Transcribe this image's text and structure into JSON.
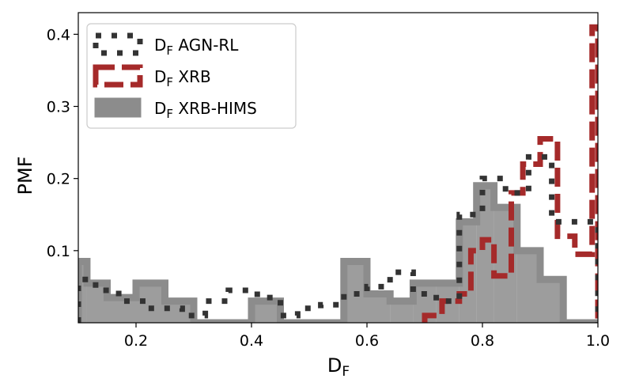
{
  "chart_data": {
    "type": "histogram",
    "xlabel": "D",
    "xlabel_sub": "F",
    "ylabel": "PMF",
    "xlim": [
      0.1,
      1.0
    ],
    "ylim": [
      0,
      0.43
    ],
    "xticks": [
      0.2,
      0.4,
      0.6,
      0.8,
      1.0
    ],
    "xtick_labels": [
      "0.2",
      "0.4",
      "0.6",
      "0.8",
      "1.0"
    ],
    "yticks": [
      0.1,
      0.2,
      0.3,
      0.4
    ],
    "ytick_labels": [
      "0.1",
      "0.2",
      "0.3",
      "0.4"
    ],
    "grid": false,
    "legend": {
      "placement": "top-left"
    },
    "series": [
      {
        "name": "D",
        "name_sub": "F",
        "name_rest": " AGN-RL",
        "style": "dotted",
        "color": "#333333",
        "edges": [
          0.1,
          0.13,
          0.17,
          0.22,
          0.25,
          0.28,
          0.32,
          0.36,
          0.41,
          0.45,
          0.48,
          0.52,
          0.56,
          0.6,
          0.64,
          0.68,
          0.72,
          0.76,
          0.8,
          0.84,
          0.88,
          0.92,
          0.96,
          1.0
        ],
        "values": [
          0.06,
          0.045,
          0.03,
          0.02,
          0.02,
          0.01,
          0.03,
          0.045,
          0.035,
          0.01,
          0.02,
          0.025,
          0.04,
          0.05,
          0.07,
          0.04,
          0.03,
          0.15,
          0.2,
          0.18,
          0.23,
          0.14,
          0.14
        ]
      },
      {
        "name": "D",
        "name_sub": "F",
        "name_rest": " XRB",
        "style": "dashed",
        "color": "#a52a2a",
        "edges": [
          0.7,
          0.73,
          0.76,
          0.78,
          0.8,
          0.82,
          0.85,
          0.87,
          0.9,
          0.93,
          0.96,
          0.99,
          1.0
        ],
        "values": [
          0.01,
          0.03,
          0.04,
          0.1,
          0.115,
          0.065,
          0.18,
          0.22,
          0.255,
          0.12,
          0.095,
          0.41
        ]
      },
      {
        "name": "D",
        "name_sub": "F",
        "name_rest": " XRB-HIMS",
        "style": "filled",
        "color": "#8c8c8c",
        "edges": [
          0.1,
          0.115,
          0.15,
          0.2,
          0.25,
          0.3,
          0.32,
          0.36,
          0.4,
          0.45,
          0.48,
          0.52,
          0.56,
          0.6,
          0.64,
          0.68,
          0.72,
          0.76,
          0.79,
          0.82,
          0.86,
          0.9,
          0.94,
          0.97,
          1.0
        ],
        "values": [
          0.085,
          0.055,
          0.035,
          0.055,
          0.03,
          0.0,
          0.0,
          0.0,
          0.03,
          0.0,
          0.0,
          0.0,
          0.085,
          0.04,
          0.03,
          0.055,
          0.055,
          0.14,
          0.19,
          0.16,
          0.1,
          0.06,
          0.0,
          0.0
        ]
      }
    ]
  }
}
